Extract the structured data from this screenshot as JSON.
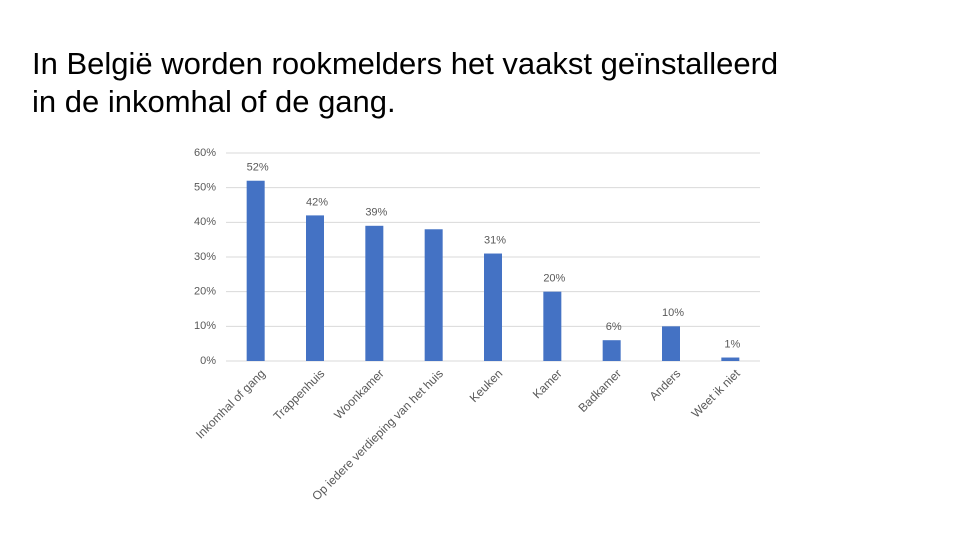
{
  "chart_data": {
    "type": "bar",
    "title": [
      "In België worden rookmelders het vaakst geïnstalleerd",
      "in de inkomhal of de gang."
    ],
    "categories": [
      "Inkomhal of gang",
      "Trappenhuis",
      "Woonkamer",
      "Op iedere verdieping van het huis",
      "Keuken",
      "Kamer",
      "Badkamer",
      "Anders",
      "Weet ik niet"
    ],
    "values": [
      52,
      42,
      39,
      38,
      31,
      20,
      6,
      10,
      1
    ],
    "value_labels": [
      "52%",
      "42%",
      "39%",
      null,
      "31%",
      "20%",
      "6%",
      "10%",
      "1%"
    ],
    "color": "#4472c4",
    "ylim": [
      0,
      60
    ],
    "yticks": [
      {
        "value": 0,
        "label": "0%"
      },
      {
        "value": 10,
        "label": "10%"
      },
      {
        "value": 20,
        "label": "20%"
      },
      {
        "value": 30,
        "label": "30%"
      },
      {
        "value": 40,
        "label": "40%"
      },
      {
        "value": 50,
        "label": "50%"
      },
      {
        "value": 60,
        "label": "60%"
      }
    ],
    "grid": true
  }
}
